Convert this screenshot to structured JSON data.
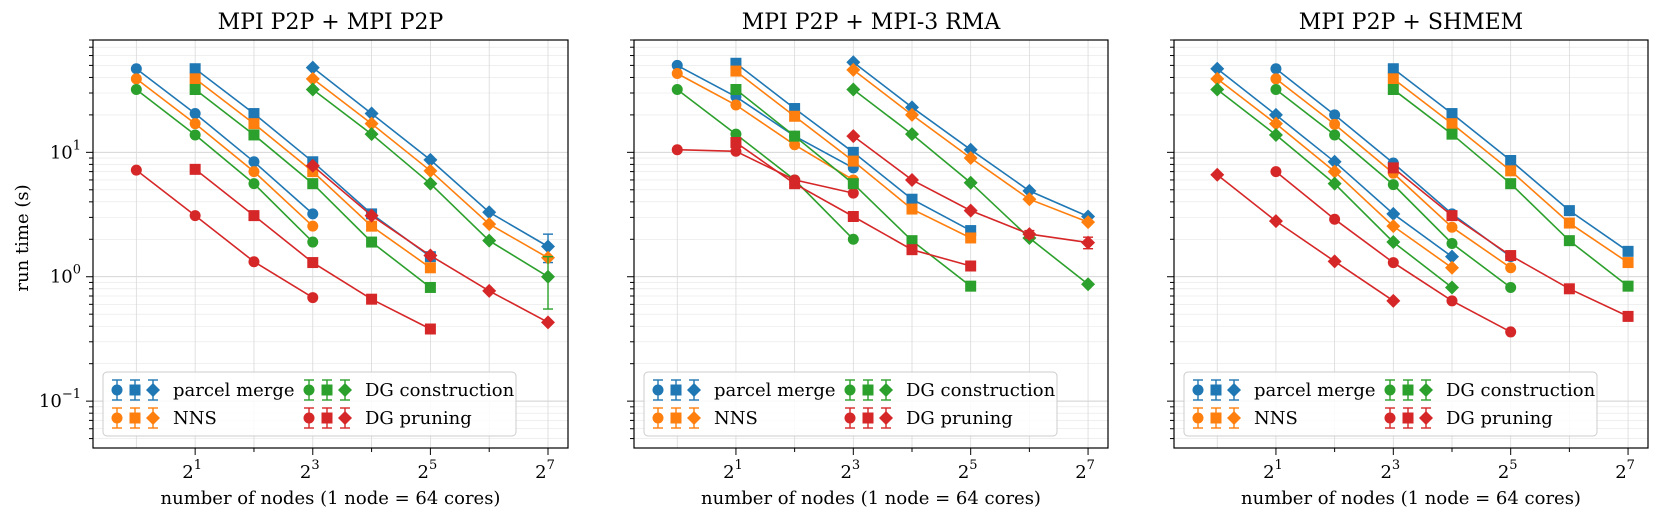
{
  "figure": {
    "ylabel": "run time (s)",
    "xlabel": "number of nodes (1 node = 64 cores)"
  },
  "legend_labels": [
    "parcel merge",
    "NNS",
    "DG construction",
    "DG pruning"
  ],
  "colors": {
    "parcel merge": "#1f77b4",
    "NNS": "#ff7f0e",
    "DG construction": "#2ca02c",
    "DG pruning": "#d62728"
  },
  "chart_data": [
    {
      "type": "line",
      "title": "MPI P2P + MPI P2P",
      "xscale": "log2",
      "yscale": "log10",
      "xlim": [
        0.6,
        162
      ],
      "ylim": [
        0.042,
        80
      ],
      "xticks": [
        {
          "base": "2",
          "exp": "1"
        },
        {
          "base": "2",
          "exp": "3"
        },
        {
          "base": "2",
          "exp": "5"
        },
        {
          "base": "2",
          "exp": "7"
        }
      ],
      "yticks": [
        {
          "base": "10",
          "exp": "1"
        },
        {
          "base": "10",
          "exp": "0"
        },
        {
          "base": "10",
          "exp": "−1"
        }
      ],
      "grid": true,
      "legend_position": "lower-left",
      "series": [
        {
          "name": "parcel merge",
          "marker": "circle",
          "x": [
            1,
            2,
            4,
            8
          ],
          "y": [
            47,
            20.5,
            8.4,
            3.2
          ]
        },
        {
          "name": "NNS",
          "marker": "circle",
          "x": [
            1,
            2,
            4,
            8
          ],
          "y": [
            39,
            17,
            7.0,
            2.55
          ]
        },
        {
          "name": "DG construction",
          "marker": "circle",
          "x": [
            1,
            2,
            4,
            8
          ],
          "y": [
            32,
            13.8,
            5.6,
            1.9
          ]
        },
        {
          "name": "DG pruning",
          "marker": "circle",
          "x": [
            1,
            2,
            4,
            8
          ],
          "y": [
            7.2,
            3.1,
            1.32,
            0.68
          ]
        },
        {
          "name": "parcel merge",
          "marker": "square",
          "x": [
            2,
            4,
            8,
            16,
            32
          ],
          "y": [
            47,
            20.5,
            8.4,
            3.2,
            1.45
          ]
        },
        {
          "name": "NNS",
          "marker": "square",
          "x": [
            2,
            4,
            8,
            16,
            32
          ],
          "y": [
            39,
            17,
            7.0,
            2.55,
            1.18
          ]
        },
        {
          "name": "DG construction",
          "marker": "square",
          "x": [
            2,
            4,
            8,
            16,
            32
          ],
          "y": [
            32,
            13.8,
            5.6,
            1.9,
            0.82
          ]
        },
        {
          "name": "DG pruning",
          "marker": "square",
          "x": [
            2,
            4,
            8,
            16,
            32
          ],
          "y": [
            7.3,
            3.1,
            1.3,
            0.66,
            0.38
          ]
        },
        {
          "name": "parcel merge",
          "marker": "diamond",
          "x": [
            8,
            16,
            32,
            64,
            128
          ],
          "y": [
            48,
            20.5,
            8.7,
            3.3,
            1.75
          ],
          "err": [
            0,
            0,
            0,
            0,
            0.45
          ]
        },
        {
          "name": "NNS",
          "marker": "diamond",
          "x": [
            8,
            16,
            32,
            64,
            128
          ],
          "y": [
            39,
            17,
            7.1,
            2.65,
            1.42
          ]
        },
        {
          "name": "DG construction",
          "marker": "diamond",
          "x": [
            8,
            16,
            32,
            64,
            128
          ],
          "y": [
            32,
            14,
            5.6,
            1.95,
            1.0
          ],
          "err": [
            0,
            0,
            0,
            0,
            0.45
          ]
        },
        {
          "name": "DG pruning",
          "marker": "diamond",
          "x": [
            8,
            16,
            32,
            64,
            128
          ],
          "y": [
            7.8,
            3.1,
            1.48,
            0.77,
            0.43
          ]
        }
      ]
    },
    {
      "type": "line",
      "title": "MPI P2P + MPI-3 RMA",
      "xscale": "log2",
      "yscale": "log10",
      "xlim": [
        0.6,
        162
      ],
      "ylim": [
        0.042,
        80
      ],
      "xticks": [
        {
          "base": "2",
          "exp": "1"
        },
        {
          "base": "2",
          "exp": "3"
        },
        {
          "base": "2",
          "exp": "5"
        },
        {
          "base": "2",
          "exp": "7"
        }
      ],
      "grid": true,
      "legend_position": "lower-left",
      "series": [
        {
          "name": "parcel merge",
          "marker": "circle",
          "x": [
            1,
            2,
            4,
            8
          ],
          "y": [
            50,
            28,
            13.5,
            7.5
          ]
        },
        {
          "name": "NNS",
          "marker": "circle",
          "x": [
            1,
            2,
            4,
            8
          ],
          "y": [
            43,
            24,
            11.5,
            6.0
          ]
        },
        {
          "name": "DG construction",
          "marker": "circle",
          "x": [
            1,
            2,
            4,
            8
          ],
          "y": [
            32,
            14,
            6.0,
            2.0
          ]
        },
        {
          "name": "DG pruning",
          "marker": "circle",
          "x": [
            1,
            2,
            4,
            8
          ],
          "y": [
            10.5,
            10.2,
            6.0,
            4.7
          ]
        },
        {
          "name": "parcel merge",
          "marker": "square",
          "x": [
            2,
            4,
            8,
            16,
            32
          ],
          "y": [
            52,
            22.5,
            10,
            4.2,
            2.35
          ]
        },
        {
          "name": "NNS",
          "marker": "square",
          "x": [
            2,
            4,
            8,
            16,
            32
          ],
          "y": [
            45,
            19.5,
            8.5,
            3.5,
            2.05
          ]
        },
        {
          "name": "DG construction",
          "marker": "square",
          "x": [
            2,
            4,
            8,
            16,
            32
          ],
          "y": [
            32,
            13.5,
            5.6,
            1.95,
            0.84
          ]
        },
        {
          "name": "DG pruning",
          "marker": "square",
          "x": [
            2,
            4,
            8,
            16,
            32
          ],
          "y": [
            12,
            5.6,
            3.05,
            1.65,
            1.22
          ]
        },
        {
          "name": "parcel merge",
          "marker": "diamond",
          "x": [
            8,
            16,
            32,
            64,
            128
          ],
          "y": [
            53,
            23,
            10.5,
            4.9,
            3.05
          ]
        },
        {
          "name": "NNS",
          "marker": "diamond",
          "x": [
            8,
            16,
            32,
            64,
            128
          ],
          "y": [
            46,
            20,
            9.0,
            4.2,
            2.75
          ]
        },
        {
          "name": "DG construction",
          "marker": "diamond",
          "x": [
            8,
            16,
            32,
            64,
            128
          ],
          "y": [
            32,
            14,
            5.7,
            2.05,
            0.87
          ]
        },
        {
          "name": "DG pruning",
          "marker": "diamond",
          "x": [
            8,
            16,
            32,
            64,
            128
          ],
          "y": [
            13.5,
            6.0,
            3.4,
            2.2,
            1.88
          ],
          "err": [
            0,
            0,
            0,
            0.15,
            0.2
          ]
        }
      ]
    },
    {
      "type": "line",
      "title": "MPI P2P + SHMEM",
      "xscale": "log2",
      "yscale": "log10",
      "xlim": [
        0.6,
        162
      ],
      "ylim": [
        0.042,
        80
      ],
      "xticks": [
        {
          "base": "2",
          "exp": "1"
        },
        {
          "base": "2",
          "exp": "3"
        },
        {
          "base": "2",
          "exp": "5"
        },
        {
          "base": "2",
          "exp": "7"
        }
      ],
      "grid": true,
      "legend_position": "lower-left",
      "series": [
        {
          "name": "parcel merge",
          "marker": "circle",
          "x": [
            2,
            4,
            8,
            16,
            32
          ],
          "y": [
            47,
            20,
            8.2,
            3.2,
            1.45
          ]
        },
        {
          "name": "NNS",
          "marker": "circle",
          "x": [
            2,
            4,
            8,
            16,
            32
          ],
          "y": [
            39,
            16.8,
            6.8,
            2.5,
            1.18
          ]
        },
        {
          "name": "DG construction",
          "marker": "circle",
          "x": [
            2,
            4,
            8,
            16,
            32
          ],
          "y": [
            32,
            13.8,
            5.5,
            1.85,
            0.82
          ]
        },
        {
          "name": "DG pruning",
          "marker": "circle",
          "x": [
            2,
            4,
            8,
            16,
            32
          ],
          "y": [
            7.0,
            2.9,
            1.3,
            0.64,
            0.36
          ]
        },
        {
          "name": "parcel merge",
          "marker": "diamond",
          "x": [
            1,
            2,
            4,
            8,
            16
          ],
          "y": [
            47,
            20,
            8.4,
            3.2,
            1.45
          ]
        },
        {
          "name": "NNS",
          "marker": "diamond",
          "x": [
            1,
            2,
            4,
            8,
            16
          ],
          "y": [
            39,
            17,
            7.0,
            2.55,
            1.18
          ]
        },
        {
          "name": "DG construction",
          "marker": "diamond",
          "x": [
            1,
            2,
            4,
            8,
            16
          ],
          "y": [
            32,
            13.8,
            5.6,
            1.9,
            0.82
          ]
        },
        {
          "name": "DG pruning",
          "marker": "diamond",
          "x": [
            1,
            2,
            4,
            8
          ],
          "y": [
            6.6,
            2.8,
            1.33,
            0.64
          ]
        },
        {
          "name": "parcel merge",
          "marker": "square",
          "x": [
            8,
            16,
            32,
            64,
            128
          ],
          "y": [
            47,
            20.5,
            8.6,
            3.4,
            1.6
          ]
        },
        {
          "name": "NNS",
          "marker": "square",
          "x": [
            8,
            16,
            32,
            64,
            128
          ],
          "y": [
            39,
            17,
            7.1,
            2.7,
            1.3
          ]
        },
        {
          "name": "DG construction",
          "marker": "square",
          "x": [
            8,
            16,
            32,
            64,
            128
          ],
          "y": [
            32,
            14,
            5.6,
            1.95,
            0.84
          ]
        },
        {
          "name": "DG pruning",
          "marker": "square",
          "x": [
            8,
            16,
            32,
            64,
            128
          ],
          "y": [
            7.5,
            3.1,
            1.48,
            0.8,
            0.48
          ]
        }
      ]
    }
  ]
}
